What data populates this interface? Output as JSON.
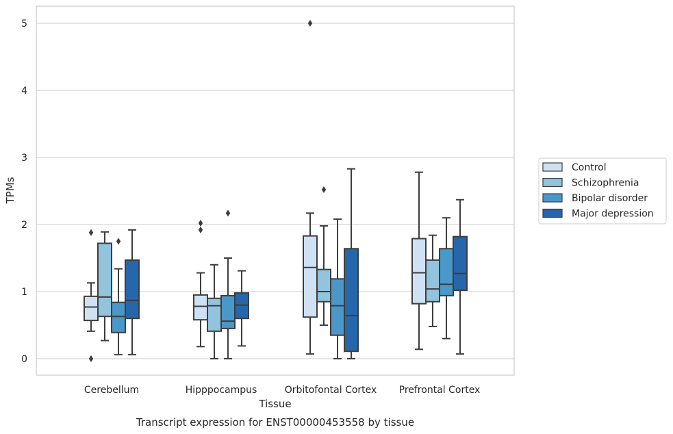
{
  "chart_data": {
    "type": "box",
    "title": "",
    "caption": "Transcript expression for ENST00000453558 by tissue",
    "xlabel": "Tissue",
    "ylabel": "TPMs",
    "ylim": [
      -0.25,
      5.25
    ],
    "yticks": [
      0,
      1,
      2,
      3,
      4,
      5
    ],
    "grid": "horizontal",
    "legend_position": "right",
    "categories": [
      "Cerebellum",
      "Hipppocampus",
      "Orbitofontal Cortex",
      "Prefrontal Cortex"
    ],
    "series": [
      {
        "name": "Control",
        "color": "#cfe1f2",
        "boxes": [
          {
            "whisker_low": 0.41,
            "q1": 0.57,
            "median": 0.77,
            "q3": 0.93,
            "whisker_high": 1.13,
            "outliers": [
              1.88,
              0.0
            ]
          },
          {
            "whisker_low": 0.18,
            "q1": 0.58,
            "median": 0.78,
            "q3": 0.95,
            "whisker_high": 1.28,
            "outliers": [
              2.02,
              1.92
            ]
          },
          {
            "whisker_low": 0.07,
            "q1": 0.62,
            "median": 1.36,
            "q3": 1.83,
            "whisker_high": 2.17,
            "outliers": [
              5.0
            ]
          },
          {
            "whisker_low": 0.14,
            "q1": 0.82,
            "median": 1.28,
            "q3": 1.79,
            "whisker_high": 2.78,
            "outliers": []
          }
        ]
      },
      {
        "name": "Schizophrenia",
        "color": "#93c4de",
        "boxes": [
          {
            "whisker_low": 0.27,
            "q1": 0.63,
            "median": 0.92,
            "q3": 1.72,
            "whisker_high": 1.89,
            "outliers": []
          },
          {
            "whisker_low": 0.0,
            "q1": 0.41,
            "median": 0.79,
            "q3": 0.9,
            "whisker_high": 1.4,
            "outliers": []
          },
          {
            "whisker_low": 0.5,
            "q1": 0.85,
            "median": 1.0,
            "q3": 1.33,
            "whisker_high": 1.98,
            "outliers": [
              2.52
            ]
          },
          {
            "whisker_low": 0.48,
            "q1": 0.85,
            "median": 1.04,
            "q3": 1.47,
            "whisker_high": 1.84,
            "outliers": []
          }
        ]
      },
      {
        "name": "Bipolar disorder",
        "color": "#4a98c9",
        "boxes": [
          {
            "whisker_low": 0.06,
            "q1": 0.39,
            "median": 0.63,
            "q3": 0.84,
            "whisker_high": 1.34,
            "outliers": [
              1.75
            ]
          },
          {
            "whisker_low": 0.0,
            "q1": 0.45,
            "median": 0.56,
            "q3": 0.94,
            "whisker_high": 1.5,
            "outliers": [
              2.17
            ]
          },
          {
            "whisker_low": 0.0,
            "q1": 0.35,
            "median": 0.79,
            "q3": 1.19,
            "whisker_high": 2.08,
            "outliers": []
          },
          {
            "whisker_low": 0.3,
            "q1": 0.94,
            "median": 1.11,
            "q3": 1.64,
            "whisker_high": 2.1,
            "outliers": []
          }
        ]
      },
      {
        "name": "Major depression",
        "color": "#2666ab",
        "boxes": [
          {
            "whisker_low": 0.06,
            "q1": 0.6,
            "median": 0.87,
            "q3": 1.47,
            "whisker_high": 1.92,
            "outliers": []
          },
          {
            "whisker_low": 0.19,
            "q1": 0.6,
            "median": 0.8,
            "q3": 0.98,
            "whisker_high": 1.31,
            "outliers": []
          },
          {
            "whisker_low": 0.0,
            "q1": 0.11,
            "median": 0.64,
            "q3": 1.64,
            "whisker_high": 2.83,
            "outliers": []
          },
          {
            "whisker_low": 0.07,
            "q1": 1.02,
            "median": 1.27,
            "q3": 1.82,
            "whisker_high": 2.37,
            "outliers": []
          }
        ]
      }
    ]
  }
}
